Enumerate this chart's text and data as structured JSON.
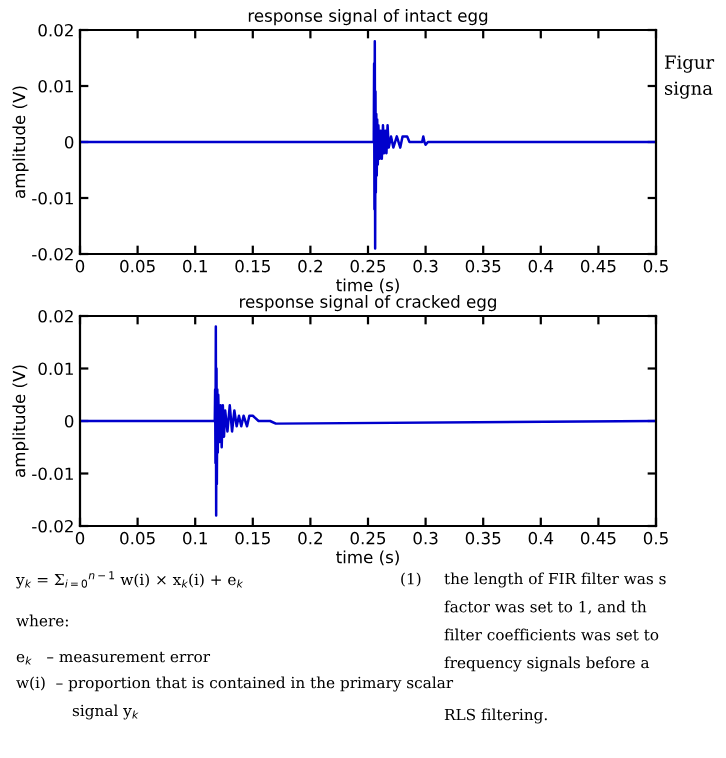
{
  "chart_data": [
    {
      "type": "line",
      "title": "response signal of intact egg",
      "xlabel": "time (s)",
      "ylabel": "amplitude (V)",
      "xlim": [
        0,
        0.5
      ],
      "ylim": [
        -0.02,
        0.02
      ],
      "xticks": [
        0,
        0.05,
        0.1,
        0.15,
        0.2,
        0.25,
        0.3,
        0.35,
        0.4,
        0.45,
        0.5
      ],
      "yticks": [
        -0.02,
        -0.01,
        0,
        0.01,
        0.02
      ],
      "grid": false,
      "line_style": "solid",
      "marker": "none",
      "series": [
        {
          "color": "#0000cc",
          "x": [
            0,
            0.255,
            0.2553,
            0.2556,
            0.2559,
            0.2562,
            0.2565,
            0.2568,
            0.2572,
            0.2576,
            0.258,
            0.2585,
            0.259,
            0.26,
            0.261,
            0.262,
            0.263,
            0.264,
            0.265,
            0.266,
            0.267,
            0.268,
            0.27,
            0.272,
            0.275,
            0.278,
            0.28,
            0.282,
            0.284,
            0.286,
            0.29,
            0.297,
            0.298,
            0.299,
            0.3,
            0.302,
            0.5
          ],
          "values": [
            0,
            0,
            0.014,
            -0.012,
            0.018,
            -0.019,
            0.009,
            -0.009,
            0.005,
            -0.006,
            0.004,
            -0.004,
            0.003,
            -0.003,
            0.002,
            -0.003,
            0.003,
            -0.002,
            0.002,
            -0.002,
            0.003,
            -0.001,
            0.001,
            -0.001,
            0.001,
            -0.001,
            0.001,
            0.001,
            0.001,
            0,
            0,
            0,
            0.001,
            0,
            -0.0005,
            0,
            0
          ]
        }
      ]
    },
    {
      "type": "line",
      "title": "response signal of cracked egg",
      "xlabel": "time (s)",
      "ylabel": "amplitude (V)",
      "xlim": [
        0,
        0.5
      ],
      "ylim": [
        -0.02,
        0.02
      ],
      "xticks": [
        0,
        0.05,
        0.1,
        0.15,
        0.2,
        0.25,
        0.3,
        0.35,
        0.4,
        0.45,
        0.5
      ],
      "yticks": [
        -0.02,
        -0.01,
        0,
        0.01,
        0.02
      ],
      "grid": false,
      "line_style": "solid",
      "marker": "none",
      "series": [
        {
          "color": "#0000cc",
          "x": [
            0,
            0.117,
            0.1173,
            0.1176,
            0.1179,
            0.1182,
            0.1185,
            0.1188,
            0.1192,
            0.1196,
            0.12,
            0.121,
            0.122,
            0.123,
            0.124,
            0.125,
            0.126,
            0.128,
            0.13,
            0.132,
            0.134,
            0.136,
            0.138,
            0.14,
            0.142,
            0.145,
            0.147,
            0.15,
            0.155,
            0.16,
            0.162,
            0.165,
            0.17,
            0.5
          ],
          "values": [
            0,
            0,
            0.006,
            -0.008,
            0.018,
            -0.018,
            0.01,
            -0.012,
            0.006,
            -0.006,
            0.005,
            -0.004,
            0.003,
            -0.005,
            0.003,
            -0.003,
            0.002,
            -0.002,
            0.003,
            -0.002,
            0.002,
            -0.001,
            0.001,
            -0.001,
            0.001,
            -0.001,
            0.001,
            0.001,
            0,
            0,
            0,
            0,
            -0.0005,
            0
          ]
        }
      ]
    },
    {
      "type": "other",
      "annotations": [
        "Figur",
        "signa",
        "y$_{k}$ = Σ$_{i=0}$$^{n−1}$ w(i) × x$_{k}$(i) + e$_{k}$",
        "(1)",
        "where:",
        "e$_{k}$   – measurement error",
        "w(i)  – proportion that is contained in the primary scalar",
        "signal y$_{k}$",
        "the length of FIR filter was s",
        "factor was set to 1, and th",
        "filter coefficients was set to",
        "frequency signals before a",
        "RLS filtering."
      ]
    }
  ]
}
